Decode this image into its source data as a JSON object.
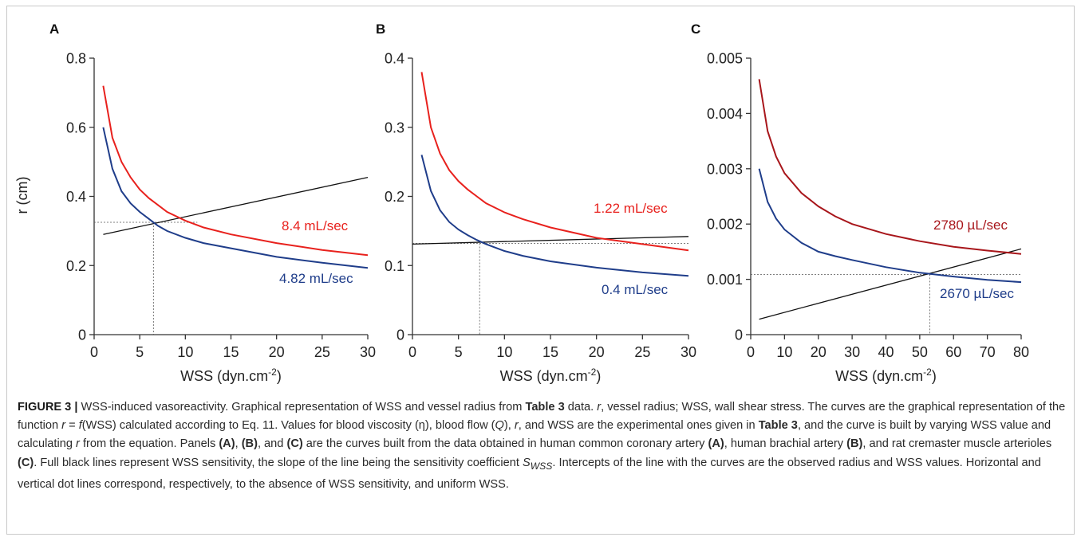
{
  "figure": {
    "panels": [
      "A",
      "B",
      "C"
    ]
  },
  "chart_data": [
    {
      "panel": "A",
      "type": "line",
      "ylabel": "r (cm)",
      "xlabel_text": "WSS (dyn.cm",
      "xlabel_sup": "-2",
      "xlabel_end": ")",
      "xlim": [
        0,
        30
      ],
      "ylim": [
        0,
        0.8
      ],
      "xticks": [
        0,
        5,
        10,
        15,
        20,
        25,
        30
      ],
      "yticks": [
        0,
        0.2,
        0.4,
        0.6,
        0.8
      ],
      "xtick_labels": [
        "0",
        "5",
        "10",
        "15",
        "20",
        "25",
        "30"
      ],
      "ytick_labels": [
        "0",
        "0.2",
        "0.4",
        "0.6",
        "0.8"
      ],
      "series": [
        {
          "label": "8.4 mL/sec",
          "color": "#e8211d",
          "x": [
            1,
            2,
            3,
            4,
            5,
            6,
            7,
            8,
            10,
            12,
            15,
            20,
            25,
            30
          ],
          "y": [
            0.72,
            0.57,
            0.5,
            0.455,
            0.42,
            0.395,
            0.375,
            0.355,
            0.33,
            0.31,
            0.29,
            0.265,
            0.245,
            0.23
          ]
        },
        {
          "label": "4.82 mL/sec",
          "color": "#1f3d8a",
          "x": [
            1,
            2,
            3,
            4,
            5,
            6,
            7,
            8,
            10,
            12,
            15,
            20,
            25,
            30
          ],
          "y": [
            0.6,
            0.48,
            0.415,
            0.38,
            0.355,
            0.335,
            0.315,
            0.3,
            0.28,
            0.265,
            0.25,
            0.225,
            0.208,
            0.193
          ]
        }
      ],
      "sensitivity_line": {
        "x": [
          1,
          30
        ],
        "y": [
          0.29,
          0.455
        ]
      },
      "dotted_h": 0.325,
      "dotted_v": 6.5
    },
    {
      "panel": "B",
      "type": "line",
      "ylabel": "",
      "xlabel_text": "WSS (dyn.cm",
      "xlabel_sup": "-2",
      "xlabel_end": ")",
      "xlim": [
        0,
        30
      ],
      "ylim": [
        0,
        0.4
      ],
      "xticks": [
        0,
        5,
        10,
        15,
        20,
        25,
        30
      ],
      "yticks": [
        0,
        0.1,
        0.2,
        0.3,
        0.4
      ],
      "xtick_labels": [
        "0",
        "5",
        "10",
        "15",
        "20",
        "25",
        "30"
      ],
      "ytick_labels": [
        "0",
        "0.1",
        "0.2",
        "0.3",
        "0.4"
      ],
      "series": [
        {
          "label": "1.22 mL/sec",
          "color": "#e8211d",
          "x": [
            1,
            2,
            3,
            4,
            5,
            6,
            7,
            8,
            10,
            12,
            15,
            20,
            25,
            30
          ],
          "y": [
            0.38,
            0.3,
            0.262,
            0.238,
            0.222,
            0.21,
            0.2,
            0.19,
            0.177,
            0.167,
            0.155,
            0.14,
            0.131,
            0.122
          ]
        },
        {
          "label": "0.4 mL/sec",
          "color": "#1f3d8a",
          "x": [
            1,
            2,
            3,
            4,
            5,
            6,
            7,
            8,
            10,
            12,
            15,
            20,
            25,
            30
          ],
          "y": [
            0.26,
            0.208,
            0.18,
            0.163,
            0.152,
            0.144,
            0.137,
            0.131,
            0.121,
            0.114,
            0.106,
            0.097,
            0.09,
            0.085
          ]
        },
        {
          "label": "",
          "color": "#000000",
          "x": [
            0,
            30
          ],
          "y": [
            0.131,
            0.142
          ]
        }
      ],
      "dotted_h": 0.132,
      "dotted_v": 7.3
    },
    {
      "panel": "C",
      "type": "line",
      "ylabel": "",
      "xlabel_text": "WSS (dyn.cm",
      "xlabel_sup": "-2",
      "xlabel_end": ")",
      "xlim": [
        0,
        80
      ],
      "ylim": [
        0,
        0.005
      ],
      "xticks": [
        0,
        10,
        20,
        30,
        40,
        50,
        60,
        70,
        80
      ],
      "yticks": [
        0,
        0.001,
        0.002,
        0.003,
        0.004,
        0.005
      ],
      "xtick_labels": [
        "0",
        "10",
        "20",
        "30",
        "40",
        "50",
        "60",
        "70",
        "80"
      ],
      "ytick_labels": [
        "0",
        "0.001",
        "0.002",
        "0.003",
        "0.004",
        "0.005"
      ],
      "series": [
        {
          "label": "2780 µL/sec",
          "color": "#a8161b",
          "x": [
            2.5,
            5,
            7.5,
            10,
            15,
            20,
            25,
            30,
            40,
            50,
            60,
            70,
            80
          ],
          "y": [
            0.00462,
            0.00368,
            0.00322,
            0.00292,
            0.00256,
            0.00232,
            0.00214,
            0.002,
            0.00182,
            0.00169,
            0.00159,
            0.00152,
            0.00146
          ]
        },
        {
          "label": "2670 µL/sec",
          "color": "#1f3d8a",
          "x": [
            2.5,
            5,
            7.5,
            10,
            15,
            20,
            25,
            30,
            40,
            50,
            60,
            70,
            80
          ],
          "y": [
            0.003,
            0.0024,
            0.0021,
            0.0019,
            0.00166,
            0.0015,
            0.00142,
            0.00135,
            0.00122,
            0.00112,
            0.00105,
            0.00099,
            0.00095
          ]
        }
      ],
      "sensitivity_line": {
        "x": [
          2.5,
          80
        ],
        "y": [
          0.00028,
          0.00155
        ]
      },
      "dotted_h": 0.00109,
      "dotted_v": 53
    }
  ],
  "caption": {
    "figure_label": "FIGURE 3 |",
    "p1": " WSS-induced vasoreactivity. Graphical representation of WSS and vessel radius from ",
    "b_table3": "Table 3",
    "p2": " data. ",
    "i_r": "r",
    "p3": ", vessel radius; WSS, wall shear stress. The curves are the graphical representation of the function ",
    "i_r2": "r",
    "p4": " = ",
    "i_f": "f",
    "p5": "(WSS) calculated according to Eq. 11. Values for blood viscosity (η), blood flow (",
    "i_q": "Q",
    "p6": "), ",
    "i_r3": "r",
    "p7": ", and WSS are the experimental ones given in ",
    "b_table3b": "Table 3",
    "p8": ", and the curve is built by varying WSS value and calculating ",
    "i_r4": "r",
    "p9": " from the equation. Panels ",
    "b_a": "(A)",
    "p10": ", ",
    "b_b": "(B)",
    "p11": ", and ",
    "b_c": "(C)",
    "p12": " are the curves built from the data obtained in human common coronary artery ",
    "b_a2": "(A)",
    "p13": ", human brachial artery ",
    "b_b2": "(B)",
    "p14": ", and rat cremaster muscle arterioles ",
    "b_c2": "(C)",
    "p15": ". Full black lines represent WSS sensitivity, the slope of the line being the sensitivity coefficient ",
    "i_s": "S",
    "sub_wss": "WSS",
    "p16": ". Intercepts of the line with the curves are the observed radius and WSS values. Horizontal and vertical dot lines correspond, respectively, to the absence of WSS sensitivity, and uniform WSS."
  }
}
